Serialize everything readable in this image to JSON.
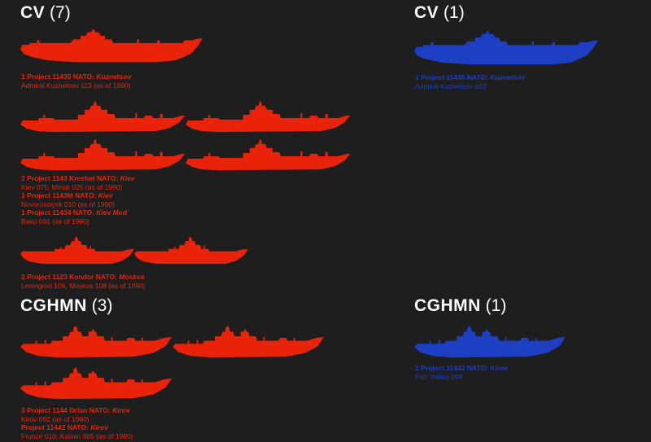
{
  "colors": {
    "soviet": "#e8230a",
    "other": "#1c3fc4",
    "background": "#1e1e1e",
    "heading": "#ffffff"
  },
  "sections": {
    "cv_soviet": {
      "type": "CV",
      "count": "(7)"
    },
    "cv_other": {
      "type": "CV",
      "count": "(1)"
    },
    "cghmn_soviet": {
      "type": "CGHMN",
      "count": "(3)"
    },
    "cghmn_other": {
      "type": "CGHMN",
      "count": "(1)"
    }
  },
  "captions": {
    "kuznetsov": {
      "lines": [
        {
          "class": "1 Project 11435 NATO: ",
          "nato": "Kuznetsov",
          "names": "Admiral Kuznetsov 113 (as of 1990)"
        }
      ]
    },
    "kiev": {
      "lines": [
        {
          "class": "2 Project 1143 Krechet  NATO: ",
          "nato": "Kiev",
          "names": "Kiev 075, Minsk 025 (as of 1990)"
        },
        {
          "class": "1 Project 1143M  NATO: ",
          "nato": "Kiev",
          "names": "Novorossiysk 010 (as of 1990)"
        },
        {
          "class": "1 Project 11434 NATO: ",
          "nato": "Kiev Mod",
          "names": "Baku 091 (as of 1990)"
        }
      ]
    },
    "moskva": {
      "lines": [
        {
          "class": "2 Project 1123 Kondor  NATO: ",
          "nato": "Moskva",
          "names": "Leningrad 106, Moskva 108 (as of 1990)"
        }
      ]
    },
    "kirov": {
      "lines": [
        {
          "class": "3 Project 1144 Orlan  NATO: ",
          "nato": "Kirov",
          "names": "Kirov 092 (as of 1990)"
        },
        {
          "class": "Project 11442  NATO: ",
          "nato": "Kirov",
          "names": "Frunze 010, Kalinin 085 (as of 1990)"
        }
      ]
    },
    "kuznetsov_other": {
      "lines": [
        {
          "class": "1 Project 11435 NATO: ",
          "nato": "Kuznetsov",
          "names": "Admiral Kuznetsov 063"
        }
      ]
    },
    "kirov_other": {
      "lines": [
        {
          "class": "1 Project 11442  NATO: ",
          "nato": "Kirov",
          "names": "Petr Velikiy 099"
        }
      ]
    }
  }
}
